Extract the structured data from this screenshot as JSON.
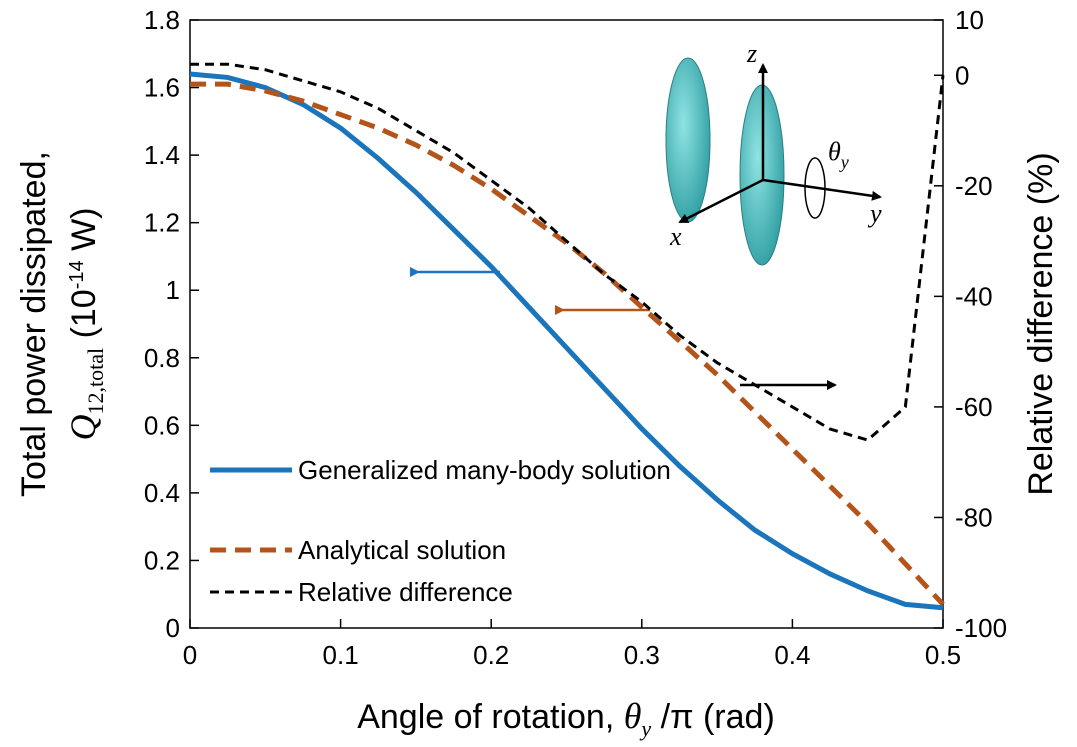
{
  "chart_data": {
    "type": "line",
    "y_label": "Total power dissipated,",
    "y_label_symbol": "Q",
    "y_label_subscript": "12,total",
    "y_label_unit": " (10",
    "y_label_exponent": "-14",
    "y_label_unit_end": " W)",
    "y2_label": "Relative difference (%)",
    "x_label": "Angle of rotation, ",
    "x_label_symbol": "θ",
    "x_label_subscript": "y",
    "x_label_end": " /π (rad)",
    "x": [
      0,
      0.025,
      0.05,
      0.075,
      0.1,
      0.125,
      0.15,
      0.175,
      0.2,
      0.225,
      0.25,
      0.275,
      0.3,
      0.325,
      0.35,
      0.375,
      0.4,
      0.425,
      0.45,
      0.475,
      0.5
    ],
    "series": [
      {
        "name": "Generalized many-body solution",
        "color": "#1a75bc",
        "values": [
          1.64,
          1.63,
          1.6,
          1.55,
          1.48,
          1.39,
          1.29,
          1.18,
          1.07,
          0.95,
          0.83,
          0.71,
          0.59,
          0.48,
          0.38,
          0.29,
          0.22,
          0.16,
          0.11,
          0.07,
          0.06
        ]
      },
      {
        "name": "Analytical solution",
        "color": "#b5541a",
        "values": [
          1.61,
          1.61,
          1.59,
          1.56,
          1.52,
          1.48,
          1.43,
          1.37,
          1.3,
          1.22,
          1.14,
          1.05,
          0.95,
          0.85,
          0.75,
          0.64,
          0.53,
          0.42,
          0.31,
          0.19,
          0.07
        ]
      },
      {
        "name": "Relative difference",
        "color": "#000000",
        "axis": "y2",
        "values": [
          2,
          2,
          1,
          -1,
          -3,
          -6,
          -10,
          -14,
          -19,
          -24,
          -30,
          -36,
          -41,
          -47,
          -52,
          -56,
          -60,
          -64,
          -66,
          -60,
          0
        ]
      }
    ],
    "xlim": [
      0,
      0.5
    ],
    "xticks": [
      0,
      0.1,
      0.2,
      0.3,
      0.4,
      0.5
    ],
    "ylim": [
      0,
      1.8
    ],
    "yticks": [
      0,
      0.2,
      0.4,
      0.6,
      0.8,
      1,
      1.2,
      1.4,
      1.6,
      1.8
    ],
    "y2lim": [
      -100,
      10
    ],
    "y2ticks": [
      -100,
      -80,
      -60,
      -40,
      -20,
      0,
      10
    ],
    "legend": "lower left"
  },
  "inset": {
    "labels": [
      "z",
      "x",
      "y",
      "θ",
      "y"
    ]
  }
}
